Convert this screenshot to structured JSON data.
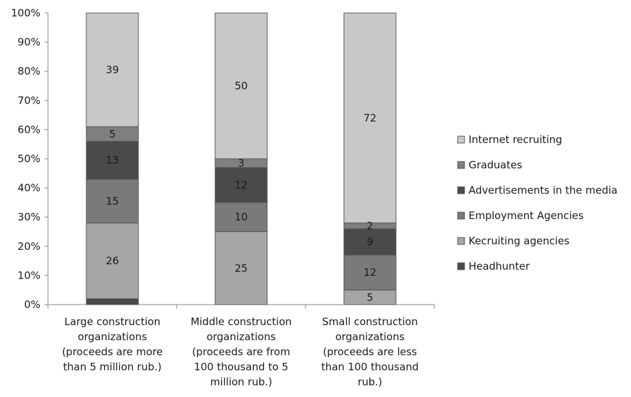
{
  "chart_data": {
    "type": "bar",
    "stacked": true,
    "percent_stacked": true,
    "categories": [
      [
        "Large construction",
        "organizations",
        "(proceeds are more",
        "than 5 million rub.)"
      ],
      [
        "Middle construction",
        "organizations",
        "(proceeds are from",
        "100 thousand to 5",
        "million rub.)"
      ],
      [
        "Small construction",
        "organizations",
        "(proceeds are less",
        "than 100 thousand",
        "rub.)"
      ]
    ],
    "series": [
      {
        "name": "Headhunter",
        "values": [
          2,
          0,
          0
        ],
        "labels": [
          "",
          "",
          ""
        ],
        "color": "#4a4a4a"
      },
      {
        "name": "Kecruiting agencies",
        "values": [
          26,
          25,
          5
        ],
        "labels": [
          "26",
          "25",
          "5"
        ],
        "color": "#a6a6a6"
      },
      {
        "name": "Employment Agencies",
        "values": [
          15,
          10,
          12
        ],
        "labels": [
          "15",
          "10",
          "12"
        ],
        "color": "#7a7a7a"
      },
      {
        "name": "Advertisements in the media",
        "values": [
          13,
          12,
          9
        ],
        "labels": [
          "13",
          "12",
          "9"
        ],
        "color": "#4a4a4a"
      },
      {
        "name": "Graduates",
        "values": [
          5,
          3,
          2
        ],
        "labels": [
          "5",
          "3",
          "2"
        ],
        "color": "#7f7f7f"
      },
      {
        "name": "Internet recruiting",
        "values": [
          39,
          50,
          72
        ],
        "labels": [
          "39",
          "50",
          "72"
        ],
        "color": "#c8c8c8"
      }
    ],
    "y_ticks": [
      "0%",
      "10%",
      "20%",
      "30%",
      "40%",
      "50%",
      "60%",
      "70%",
      "80%",
      "90%",
      "100%"
    ],
    "ylim": [
      0,
      100
    ],
    "grid": false,
    "legend_position": "right",
    "title": "",
    "xlabel": "",
    "ylabel": ""
  }
}
